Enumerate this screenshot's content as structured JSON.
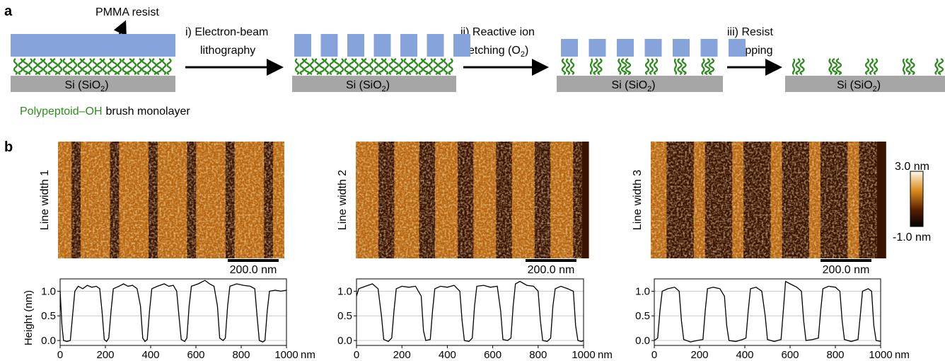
{
  "panel_a": {
    "label": "a",
    "pmma_label": "PMMA resist",
    "steps": [
      {
        "line1": "i) Electron-beam",
        "line2": "lithography"
      },
      {
        "line1": "ii) Reactive ion",
        "line2": {
          "pre": "etching (O",
          "sub": "2",
          "post": ")"
        }
      },
      {
        "line1": "iii) Resist",
        "line2": "stripping"
      }
    ],
    "substrates": [
      {
        "pre": "Si (SiO",
        "sub": "2",
        "post": ")"
      },
      {
        "pre": "Si (SiO",
        "sub": "2",
        "post": ")"
      },
      {
        "pre": "Si (SiO",
        "sub": "2",
        "post": ")"
      },
      {
        "pre": "Si (SiO",
        "sub": "2",
        "post": ")"
      }
    ],
    "legend": {
      "name": "Polypeptoid–OH",
      "rest": "brush monolayer"
    }
  },
  "panel_b": {
    "label": "b",
    "images": [
      {
        "label": "Line width 1",
        "scale_bar": "200.0 nm"
      },
      {
        "label": "Line width 2",
        "scale_bar": "200.0 nm"
      },
      {
        "label": "Line width 3",
        "scale_bar": "200.0 nm"
      }
    ],
    "colorbar": {
      "max": "3.0 nm",
      "min": "-1.0 nm"
    }
  },
  "chart_data": [
    {
      "type": "line",
      "ylabel": "Height (nm)",
      "x_unit": "nm",
      "color": "#000000",
      "grid": true,
      "xlim": [
        0,
        1000
      ],
      "xticks": [
        0,
        200,
        400,
        600,
        800,
        1000
      ],
      "ylim": [
        -0.1,
        1.25
      ],
      "yticks": [
        {
          "value": 0,
          "label": "0.0"
        },
        {
          "value": 0.5,
          "label": "0.5"
        },
        {
          "value": 1,
          "label": "1.0"
        }
      ],
      "x": [
        0,
        8,
        15,
        30,
        45,
        55,
        65,
        80,
        100,
        120,
        140,
        160,
        175,
        185,
        195,
        205,
        215,
        225,
        235,
        260,
        280,
        300,
        320,
        340,
        355,
        365,
        375,
        385,
        395,
        405,
        430,
        460,
        480,
        500,
        515,
        525,
        535,
        550,
        560,
        570,
        580,
        610,
        640,
        660,
        680,
        695,
        705,
        720,
        730,
        740,
        750,
        780,
        810,
        840,
        860,
        870,
        880,
        895,
        905,
        915,
        925,
        950,
        975,
        1000
      ],
      "values": [
        1.0,
        0.3,
        0.0,
        -0.02,
        0.0,
        0.5,
        1.0,
        1.1,
        1.05,
        1.12,
        1.08,
        1.1,
        1.05,
        0.6,
        0.02,
        -0.02,
        0.05,
        0.6,
        1.05,
        1.1,
        1.15,
        1.1,
        1.12,
        1.05,
        0.7,
        0.05,
        -0.02,
        0.02,
        0.6,
        1.05,
        1.1,
        1.15,
        1.1,
        1.12,
        1.0,
        0.5,
        0.02,
        -0.02,
        0.05,
        0.7,
        1.1,
        1.15,
        1.22,
        1.15,
        1.1,
        0.7,
        0.05,
        0.0,
        0.05,
        0.7,
        1.1,
        1.15,
        1.12,
        1.1,
        1.05,
        0.5,
        0.0,
        -0.03,
        0.0,
        0.6,
        1.0,
        1.02,
        1.0,
        1.02
      ]
    },
    {
      "type": "line",
      "x_unit": "nm",
      "color": "#000000",
      "grid": true,
      "xlim": [
        0,
        1000
      ],
      "xticks": [
        0,
        200,
        400,
        600,
        800,
        1000
      ],
      "ylim": [
        -0.1,
        1.25
      ],
      "yticks": [
        {
          "value": 0,
          "label": "0.0"
        },
        {
          "value": 0.5,
          "label": "0.5"
        },
        {
          "value": 1,
          "label": "1.0"
        }
      ],
      "x": [
        0,
        10,
        40,
        70,
        95,
        110,
        120,
        140,
        155,
        165,
        175,
        200,
        230,
        260,
        285,
        295,
        305,
        325,
        335,
        345,
        370,
        400,
        430,
        455,
        465,
        475,
        495,
        510,
        520,
        530,
        560,
        590,
        620,
        635,
        645,
        665,
        680,
        690,
        700,
        720,
        750,
        780,
        800,
        810,
        820,
        840,
        855,
        865,
        875,
        900,
        930,
        955,
        965,
        975,
        990,
        1000
      ],
      "values": [
        0.9,
        1.05,
        1.1,
        1.15,
        1.05,
        0.5,
        0.02,
        -0.02,
        0.05,
        0.6,
        1.05,
        1.1,
        1.08,
        1.1,
        0.9,
        0.2,
        0.0,
        0.02,
        0.6,
        1.05,
        1.1,
        1.08,
        1.12,
        1.0,
        0.4,
        0.0,
        -0.02,
        0.05,
        0.7,
        1.1,
        1.12,
        1.08,
        1.1,
        0.6,
        0.02,
        0.0,
        0.05,
        0.7,
        1.15,
        1.2,
        1.12,
        1.1,
        1.0,
        0.4,
        0.0,
        -0.02,
        0.05,
        0.7,
        1.05,
        1.1,
        1.05,
        1.0,
        0.3,
        0.0,
        -0.02,
        0.0
      ]
    },
    {
      "type": "line",
      "x_unit": "nm",
      "color": "#000000",
      "grid": true,
      "xlim": [
        0,
        1000
      ],
      "xticks": [
        0,
        200,
        400,
        600,
        800,
        1000
      ],
      "ylim": [
        -0.1,
        1.25
      ],
      "yticks": [
        {
          "value": 0,
          "label": "0.0"
        },
        {
          "value": 0.5,
          "label": "0.5"
        },
        {
          "value": 1,
          "label": "1.0"
        }
      ],
      "x": [
        0,
        15,
        25,
        35,
        60,
        90,
        110,
        120,
        130,
        160,
        190,
        215,
        225,
        235,
        260,
        290,
        310,
        320,
        330,
        360,
        390,
        405,
        415,
        425,
        450,
        475,
        490,
        500,
        530,
        560,
        570,
        580,
        600,
        630,
        650,
        660,
        670,
        700,
        725,
        735,
        745,
        770,
        800,
        820,
        830,
        840,
        870,
        900,
        910,
        920,
        945,
        960,
        970,
        980,
        1000
      ],
      "values": [
        0.0,
        0.05,
        0.6,
        1.0,
        1.05,
        1.08,
        1.0,
        0.4,
        0.02,
        -0.03,
        0.0,
        0.02,
        0.6,
        1.05,
        1.08,
        1.05,
        0.9,
        0.3,
        0.0,
        -0.02,
        0.02,
        0.05,
        0.6,
        1.05,
        1.08,
        1.0,
        0.5,
        0.02,
        -0.02,
        0.02,
        0.6,
        1.2,
        1.15,
        1.08,
        1.0,
        0.4,
        0.0,
        0.02,
        0.05,
        0.6,
        1.05,
        1.1,
        1.08,
        1.0,
        0.4,
        0.02,
        -0.02,
        0.02,
        0.5,
        1.0,
        1.05,
        1.0,
        0.3,
        0.0,
        -0.02
      ]
    }
  ]
}
